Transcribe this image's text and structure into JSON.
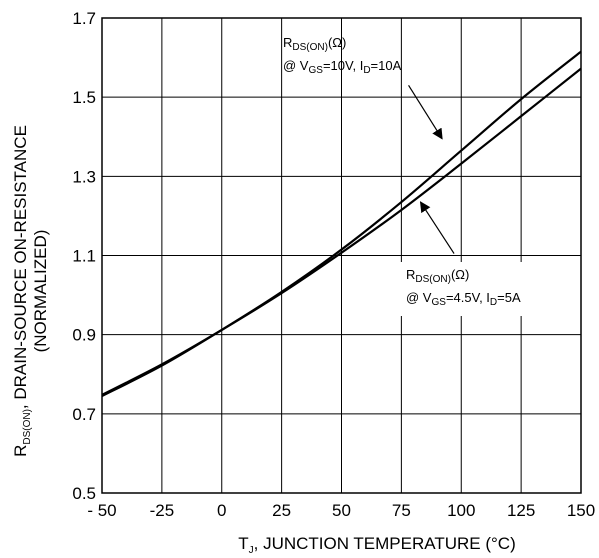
{
  "chart_data": {
    "type": "line",
    "xlabel": "T",
    "xlabel_sub": "J",
    "xlabel_rest": ", JUNCTION TEMPERATURE (°C)",
    "ylabel_r": "R",
    "ylabel_sub": "DS(ON)",
    "ylabel_rest": ", DRAIN-SOURCE ON-RESISTANCE",
    "ylabel_line2": "(NORMALIZED)",
    "xlim": [
      -50,
      150
    ],
    "ylim": [
      0.5,
      1.7
    ],
    "xticks": [
      -50,
      -25,
      0,
      25,
      50,
      75,
      100,
      125,
      150
    ],
    "xtick_labels": [
      "- 50",
      "-25",
      "0",
      "25",
      "50",
      "75",
      "100",
      "125",
      "150"
    ],
    "yticks": [
      0.5,
      0.7,
      0.9,
      1.1,
      1.3,
      1.5,
      1.7
    ],
    "ytick_labels": [
      "0.5",
      "0.7",
      "0.9",
      "1.1",
      "1.3",
      "1.5",
      "1.7"
    ],
    "grid": true,
    "series": [
      {
        "x": [
          -50,
          -25,
          0,
          25,
          50,
          75,
          100,
          125,
          150
        ],
        "y": [
          0.745,
          0.822,
          0.912,
          1.008,
          1.115,
          1.235,
          1.365,
          1.495,
          1.615
        ]
      },
      {
        "x": [
          -50,
          -25,
          0,
          25,
          50,
          75,
          100,
          125,
          150
        ],
        "y": [
          0.748,
          0.825,
          0.912,
          1.005,
          1.107,
          1.215,
          1.332,
          1.452,
          1.572
        ]
      }
    ],
    "annotations": [
      {
        "text_r": "R",
        "text_sub": "DS(ON)",
        "text_rest": "(Ω)",
        "line2_a": "@ V",
        "line2_sub1": "GS",
        "line2_b": "=10V, I",
        "line2_sub2": "D",
        "line2_c": "=10A",
        "arrow_from": [
          78,
          1.53
        ],
        "arrow_to": [
          92,
          1.395
        ]
      },
      {
        "text_r": "R",
        "text_sub": "DS(ON)",
        "text_rest": "(Ω)",
        "line2_a": "@ V",
        "line2_sub1": "GS",
        "line2_b": "=4.5V, I",
        "line2_sub2": "D",
        "line2_c": "=5A",
        "arrow_from": [
          97,
          1.105
        ],
        "arrow_to": [
          83,
          1.235
        ]
      }
    ]
  }
}
